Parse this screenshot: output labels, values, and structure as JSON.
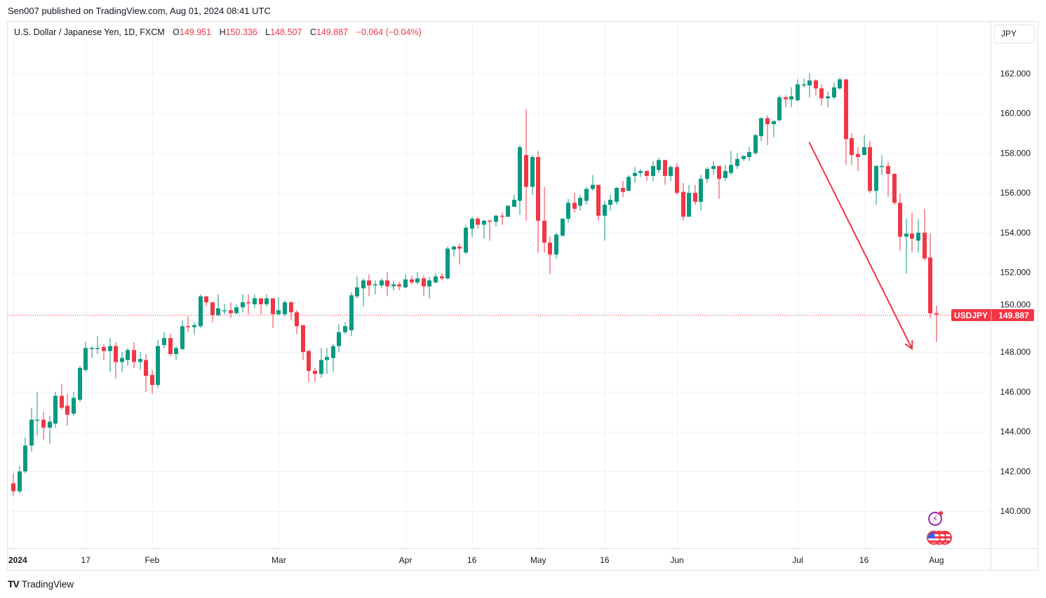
{
  "header": {
    "published": "Sen007 published on TradingView.com, Aug 01, 2024 08:41 UTC"
  },
  "legend": {
    "symbol": "U.S. Dollar / Japanese Yen, 1D, FXCM",
    "o_label": "O",
    "o": "149.951",
    "h_label": "H",
    "h": "150.336",
    "l_label": "L",
    "l": "148.507",
    "c_label": "C",
    "c": "149.887",
    "change": "−0.064 (−0.04%)"
  },
  "currency_button": "JPY",
  "price_tag": {
    "symbol": "USDJPY",
    "price": "149.887"
  },
  "footer": {
    "brand": "TradingView",
    "brand_mark": "TV"
  },
  "colors": {
    "up": "#089981",
    "down": "#f23645",
    "grid": "#f0f3fa",
    "drawing": "#f23645"
  },
  "chart_data": {
    "type": "candlestick",
    "title": "U.S. Dollar / Japanese Yen, 1D, FXCM",
    "start_date": "2024-01-01",
    "interval": "1D (weekdays)",
    "ylim": [
      138.14,
      164.6
    ],
    "y_ticks": [
      "140.000",
      "142.000",
      "144.000",
      "146.000",
      "148.000",
      "150.000",
      "152.000",
      "154.000",
      "156.000",
      "158.000",
      "160.000",
      "162.000"
    ],
    "x_ticks": [
      {
        "label": "2024",
        "date": "2024-01-01"
      },
      {
        "label": "17",
        "date": "2024-01-17"
      },
      {
        "label": "Feb",
        "date": "2024-02-01"
      },
      {
        "label": "Mar",
        "date": "2024-03-01"
      },
      {
        "label": "Apr",
        "date": "2024-04-01"
      },
      {
        "label": "16",
        "date": "2024-04-16"
      },
      {
        "label": "May",
        "date": "2024-05-01"
      },
      {
        "label": "16",
        "date": "2024-05-16"
      },
      {
        "label": "Jun",
        "date": "2024-06-03"
      },
      {
        "label": "Jul",
        "date": "2024-07-01"
      },
      {
        "label": "16",
        "date": "2024-07-16"
      },
      {
        "label": "Aug",
        "date": "2024-08-01"
      }
    ],
    "last_price": 149.887,
    "trend_arrow": {
      "from": {
        "bar": 131.9,
        "price": 158.55
      },
      "to": {
        "bar": 148.95,
        "price": 148.17
      }
    },
    "ohlc": [
      [
        141.4,
        141.9,
        140.8,
        141.0
      ],
      [
        141.0,
        142.3,
        140.9,
        142.0
      ],
      [
        142.0,
        143.7,
        141.9,
        143.3
      ],
      [
        143.3,
        145.2,
        143.0,
        144.6
      ],
      [
        144.6,
        146.0,
        143.8,
        144.6
      ],
      [
        144.6,
        145.0,
        143.6,
        144.2
      ],
      [
        144.2,
        144.8,
        143.4,
        144.5
      ],
      [
        144.4,
        146.0,
        144.2,
        145.8
      ],
      [
        145.8,
        146.4,
        145.1,
        145.2
      ],
      [
        145.3,
        145.9,
        144.3,
        144.85
      ],
      [
        144.9,
        146.0,
        144.8,
        145.7
      ],
      [
        145.6,
        147.3,
        145.5,
        147.2
      ],
      [
        147.1,
        148.5,
        147.0,
        148.2
      ],
      [
        148.17,
        148.3,
        147.7,
        148.2
      ],
      [
        148.2,
        148.8,
        147.9,
        148.2
      ],
      [
        148.25,
        148.4,
        147.6,
        148.05
      ],
      [
        148.05,
        148.7,
        147.0,
        148.3
      ],
      [
        148.3,
        148.5,
        146.65,
        147.5
      ],
      [
        147.5,
        148.0,
        147.0,
        147.7
      ],
      [
        147.6,
        148.2,
        147.3,
        148.1
      ],
      [
        148.1,
        148.5,
        147.2,
        147.5
      ],
      [
        147.5,
        148.0,
        147.1,
        147.65
      ],
      [
        147.6,
        147.9,
        146.0,
        146.8
      ],
      [
        146.85,
        147.1,
        145.9,
        146.35
      ],
      [
        146.35,
        148.6,
        146.2,
        148.3
      ],
      [
        148.35,
        149.0,
        148.2,
        148.7
      ],
      [
        148.7,
        148.9,
        147.8,
        147.9
      ],
      [
        147.9,
        148.3,
        147.6,
        148.2
      ],
      [
        148.15,
        149.6,
        148.1,
        149.3
      ],
      [
        149.3,
        149.8,
        149.0,
        149.25
      ],
      [
        149.25,
        149.5,
        148.9,
        149.35
      ],
      [
        149.3,
        150.9,
        149.2,
        150.8
      ],
      [
        150.8,
        150.8,
        150.3,
        150.5
      ],
      [
        150.5,
        150.5,
        149.5,
        149.85
      ],
      [
        149.85,
        150.9,
        149.8,
        150.2
      ],
      [
        150.05,
        150.4,
        149.9,
        150.1
      ],
      [
        150.1,
        150.5,
        149.7,
        149.95
      ],
      [
        149.95,
        150.4,
        149.9,
        150.25
      ],
      [
        150.25,
        150.9,
        150.0,
        150.5
      ],
      [
        150.5,
        150.9,
        149.9,
        150.45
      ],
      [
        150.4,
        150.9,
        150.2,
        150.7
      ],
      [
        150.7,
        150.7,
        149.9,
        150.4
      ],
      [
        150.4,
        150.9,
        150.3,
        150.7
      ],
      [
        150.7,
        150.7,
        149.2,
        149.9
      ],
      [
        149.9,
        150.75,
        149.85,
        150.1
      ],
      [
        149.9,
        150.6,
        149.8,
        150.5
      ],
      [
        150.5,
        150.55,
        149.6,
        150.0
      ],
      [
        150.0,
        150.1,
        148.9,
        149.3
      ],
      [
        149.35,
        149.35,
        147.6,
        148.0
      ],
      [
        148.05,
        148.1,
        146.5,
        147.05
      ],
      [
        147.05,
        147.2,
        146.5,
        146.9
      ],
      [
        146.9,
        148.2,
        146.7,
        147.6
      ],
      [
        147.6,
        148.2,
        146.9,
        147.75
      ],
      [
        147.7,
        148.4,
        147.0,
        148.3
      ],
      [
        148.3,
        149.4,
        148.0,
        149.0
      ],
      [
        149.0,
        149.5,
        148.9,
        149.3
      ],
      [
        149.1,
        151.0,
        148.8,
        150.85
      ],
      [
        150.8,
        151.8,
        150.7,
        151.25
      ],
      [
        151.2,
        151.7,
        150.3,
        151.6
      ],
      [
        151.6,
        151.9,
        150.8,
        151.35
      ],
      [
        151.4,
        151.6,
        150.9,
        151.4
      ],
      [
        151.35,
        151.7,
        151.2,
        151.6
      ],
      [
        151.6,
        152.0,
        150.8,
        151.3
      ],
      [
        151.3,
        151.6,
        151.1,
        151.4
      ],
      [
        151.4,
        151.55,
        151.1,
        151.3
      ],
      [
        151.25,
        151.9,
        151.2,
        151.65
      ],
      [
        151.65,
        151.85,
        151.4,
        151.5
      ],
      [
        151.5,
        152.0,
        151.4,
        151.7
      ],
      [
        151.7,
        151.85,
        150.8,
        151.3
      ],
      [
        151.3,
        151.8,
        150.7,
        151.6
      ],
      [
        151.5,
        151.95,
        151.45,
        151.8
      ],
      [
        151.8,
        151.95,
        151.6,
        151.7
      ],
      [
        151.7,
        153.3,
        151.65,
        153.2
      ],
      [
        153.15,
        153.35,
        152.8,
        153.3
      ],
      [
        153.3,
        153.45,
        152.4,
        153.2
      ],
      [
        153.0,
        154.4,
        152.9,
        154.25
      ],
      [
        154.2,
        154.8,
        153.8,
        154.7
      ],
      [
        154.7,
        154.8,
        154.2,
        154.4
      ],
      [
        154.4,
        154.65,
        153.7,
        154.6
      ],
      [
        154.6,
        154.65,
        153.6,
        154.55
      ],
      [
        154.55,
        154.9,
        154.3,
        154.85
      ],
      [
        154.85,
        155.0,
        154.4,
        154.8
      ],
      [
        154.8,
        155.4,
        154.8,
        155.35
      ],
      [
        155.3,
        155.9,
        155.3,
        155.65
      ],
      [
        155.6,
        158.4,
        154.9,
        158.3
      ],
      [
        157.9,
        160.2,
        154.6,
        156.3
      ],
      [
        156.3,
        157.9,
        155.9,
        157.8
      ],
      [
        157.8,
        158.1,
        153.0,
        154.6
      ],
      [
        154.6,
        156.3,
        153.0,
        153.5
      ],
      [
        153.5,
        153.8,
        151.9,
        152.9
      ],
      [
        152.9,
        154.0,
        152.7,
        153.9
      ],
      [
        153.85,
        154.75,
        153.8,
        154.7
      ],
      [
        154.7,
        155.7,
        154.5,
        155.5
      ],
      [
        155.5,
        156.0,
        155.0,
        155.2
      ],
      [
        155.35,
        155.9,
        155.1,
        155.75
      ],
      [
        155.6,
        156.3,
        155.4,
        156.2
      ],
      [
        156.2,
        156.9,
        156.1,
        156.4
      ],
      [
        156.4,
        156.4,
        154.6,
        154.85
      ],
      [
        154.85,
        155.6,
        153.6,
        155.4
      ],
      [
        155.4,
        155.9,
        155.1,
        155.65
      ],
      [
        155.55,
        156.3,
        155.4,
        156.25
      ],
      [
        156.25,
        156.6,
        155.8,
        156.05
      ],
      [
        156.1,
        156.9,
        156.1,
        156.8
      ],
      [
        156.85,
        157.3,
        156.5,
        157.0
      ],
      [
        157.0,
        157.2,
        156.8,
        157.1
      ],
      [
        157.1,
        157.1,
        156.6,
        156.85
      ],
      [
        156.85,
        157.6,
        156.6,
        157.35
      ],
      [
        157.15,
        157.75,
        157.0,
        157.65
      ],
      [
        157.65,
        157.65,
        156.4,
        156.85
      ],
      [
        156.85,
        157.4,
        156.6,
        157.3
      ],
      [
        157.3,
        157.5,
        155.9,
        156.0
      ],
      [
        156.05,
        156.5,
        154.6,
        154.8
      ],
      [
        154.8,
        156.4,
        154.8,
        156.0
      ],
      [
        156.0,
        156.4,
        155.4,
        155.55
      ],
      [
        155.55,
        156.9,
        155.1,
        156.7
      ],
      [
        156.7,
        157.3,
        156.5,
        157.2
      ],
      [
        157.2,
        157.6,
        156.9,
        157.35
      ],
      [
        157.35,
        157.35,
        155.7,
        156.7
      ],
      [
        156.75,
        157.4,
        156.6,
        157.1
      ],
      [
        157.0,
        158.1,
        156.9,
        157.4
      ],
      [
        157.35,
        158.0,
        157.2,
        157.7
      ],
      [
        157.7,
        157.9,
        157.6,
        157.85
      ],
      [
        157.8,
        158.3,
        157.6,
        158.05
      ],
      [
        158.0,
        158.95,
        157.9,
        158.9
      ],
      [
        158.85,
        159.8,
        158.6,
        159.75
      ],
      [
        159.75,
        159.9,
        158.4,
        159.45
      ],
      [
        159.45,
        159.65,
        158.8,
        159.6
      ],
      [
        159.65,
        160.9,
        159.6,
        160.8
      ],
      [
        160.8,
        160.9,
        160.3,
        160.7
      ],
      [
        160.7,
        161.3,
        160.3,
        160.85
      ],
      [
        160.65,
        161.7,
        160.6,
        161.45
      ],
      [
        161.45,
        161.75,
        161.3,
        161.45
      ],
      [
        161.4,
        162.0,
        160.8,
        161.65
      ],
      [
        161.65,
        161.7,
        160.9,
        161.25
      ],
      [
        161.25,
        161.45,
        160.4,
        160.75
      ],
      [
        160.75,
        161.1,
        160.3,
        160.85
      ],
      [
        160.8,
        161.55,
        160.7,
        161.3
      ],
      [
        161.25,
        161.8,
        161.2,
        161.7
      ],
      [
        161.7,
        161.7,
        157.4,
        158.7
      ],
      [
        158.75,
        159.0,
        157.4,
        157.9
      ],
      [
        157.95,
        158.3,
        157.1,
        157.8
      ],
      [
        157.9,
        158.9,
        157.9,
        158.3
      ],
      [
        158.3,
        158.6,
        156.0,
        156.1
      ],
      [
        156.1,
        157.4,
        155.4,
        157.35
      ],
      [
        157.35,
        157.9,
        156.9,
        157.35
      ],
      [
        157.35,
        157.55,
        155.8,
        156.95
      ],
      [
        156.95,
        157.0,
        155.4,
        155.5
      ],
      [
        155.5,
        155.95,
        153.1,
        153.8
      ],
      [
        153.8,
        154.7,
        151.95,
        153.95
      ],
      [
        153.95,
        155.0,
        153.0,
        153.7
      ],
      [
        153.6,
        154.7,
        153.0,
        154.0
      ],
      [
        154.0,
        155.2,
        152.6,
        152.7
      ],
      [
        152.75,
        153.95,
        149.7,
        149.95
      ],
      [
        149.951,
        150.336,
        148.507,
        149.887
      ]
    ]
  }
}
